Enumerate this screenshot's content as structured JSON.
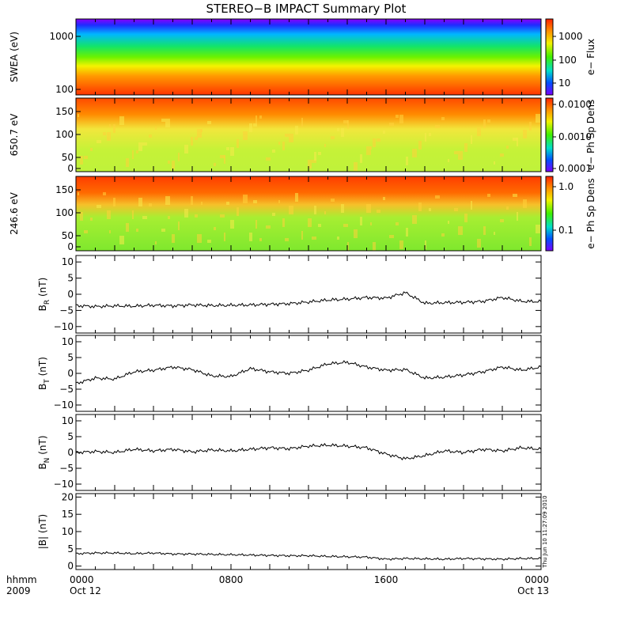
{
  "chart_data": [
    {
      "type": "heatmap",
      "ylabel": "SWEA (eV)",
      "yscale": "log",
      "yticks": [
        "1000",
        "100"
      ],
      "colorbar": {
        "label": "e− Flux",
        "ticks": [
          "1000",
          "100",
          "10"
        ]
      }
    },
    {
      "type": "heatmap",
      "ylabel": "650.7 eV",
      "yticks": [
        "150",
        "100",
        "50",
        "0"
      ],
      "colorbar": {
        "label": "e− Ph Sp Dens",
        "ticks": [
          "0.0100",
          "0.0010",
          "0.0001"
        ]
      }
    },
    {
      "type": "heatmap",
      "ylabel": "246.6 eV",
      "yticks": [
        "150",
        "100",
        "50",
        "0"
      ],
      "colorbar": {
        "label": "e− Ph Sp Dens",
        "ticks": [
          "1.0",
          "0.1"
        ]
      }
    },
    {
      "type": "line",
      "ylabel_main": "B",
      "ylabel_sub": "R",
      "ylabel_unit": " (nT)",
      "yticks": [
        "10",
        "5",
        "0",
        "−5",
        "−10"
      ],
      "ylim": [
        -12,
        12
      ],
      "x": [
        0,
        1,
        2,
        3,
        4,
        5,
        6,
        7,
        8,
        9,
        10,
        11,
        12,
        13,
        14,
        15,
        16,
        17,
        18,
        19,
        20,
        21,
        22,
        23,
        24
      ],
      "values": [
        -3.5,
        -3.8,
        -3.6,
        -3.7,
        -3.4,
        -3.6,
        -3.3,
        -3.5,
        -3.4,
        -3.3,
        -3.1,
        -2.9,
        -2.4,
        -1.8,
        -1.5,
        -1.0,
        -1.2,
        0.5,
        -2.8,
        -2.6,
        -2.5,
        -2.2,
        -1.0,
        -2.2,
        -2.3
      ]
    },
    {
      "type": "line",
      "ylabel_main": "B",
      "ylabel_sub": "T",
      "ylabel_unit": " (nT)",
      "yticks": [
        "10",
        "5",
        "0",
        "−5",
        "−10"
      ],
      "ylim": [
        -12,
        12
      ],
      "x": [
        0,
        1,
        2,
        3,
        4,
        5,
        6,
        7,
        8,
        9,
        10,
        11,
        12,
        13,
        14,
        15,
        16,
        17,
        18,
        19,
        20,
        21,
        22,
        23,
        24
      ],
      "values": [
        -3.2,
        -1.5,
        -1.8,
        0.5,
        1.0,
        2.0,
        1.2,
        -0.8,
        -1.0,
        1.5,
        0.5,
        0.0,
        1.0,
        3.0,
        3.5,
        2.0,
        1.0,
        1.2,
        -1.5,
        -1.2,
        -0.5,
        0.5,
        2.0,
        1.0,
        2.0
      ]
    },
    {
      "type": "line",
      "ylabel_main": "B",
      "ylabel_sub": "N",
      "ylabel_unit": " (nT)",
      "yticks": [
        "10",
        "5",
        "0",
        "−5",
        "−10"
      ],
      "ylim": [
        -12,
        12
      ],
      "x": [
        0,
        1,
        2,
        3,
        4,
        5,
        6,
        7,
        8,
        9,
        10,
        11,
        12,
        13,
        14,
        15,
        16,
        17,
        18,
        19,
        20,
        21,
        22,
        23,
        24
      ],
      "values": [
        0.0,
        0.3,
        0.0,
        1.0,
        0.5,
        1.0,
        0.2,
        0.8,
        0.5,
        1.0,
        1.5,
        1.2,
        2.0,
        2.3,
        2.0,
        1.5,
        -0.5,
        -2.0,
        -1.0,
        0.5,
        0.0,
        1.0,
        0.5,
        1.5,
        1.0
      ]
    },
    {
      "type": "line",
      "ylabel_main": "|B|",
      "ylabel_sub": "",
      "ylabel_unit": " (nT)",
      "yticks": [
        "20",
        "15",
        "10",
        "5",
        "0"
      ],
      "ylim": [
        -1,
        21
      ],
      "x": [
        0,
        1,
        2,
        3,
        4,
        5,
        6,
        7,
        8,
        9,
        10,
        11,
        12,
        13,
        14,
        15,
        16,
        17,
        18,
        19,
        20,
        21,
        22,
        23,
        24
      ],
      "values": [
        3.6,
        3.8,
        3.8,
        3.6,
        3.8,
        3.5,
        3.5,
        3.4,
        3.3,
        3.2,
        3.1,
        3.0,
        3.0,
        2.8,
        2.7,
        2.6,
        2.0,
        2.2,
        2.1,
        2.0,
        2.2,
        2.1,
        2.0,
        2.2,
        2.2
      ]
    }
  ],
  "title": "STEREO−B IMPACT Summary Plot",
  "time_axis": {
    "label_top": "hhmm",
    "label_bottom": "2009",
    "ticks": [
      {
        "hour": 0,
        "hhmm": "0000",
        "date": "Oct 12"
      },
      {
        "hour": 8,
        "hhmm": "0800",
        "date": ""
      },
      {
        "hour": 16,
        "hhmm": "1600",
        "date": ""
      },
      {
        "hour": 24,
        "hhmm": "0000",
        "date": "Oct 13"
      }
    ]
  },
  "timestamp": "Thu Jun 10 11:27:09 2010"
}
